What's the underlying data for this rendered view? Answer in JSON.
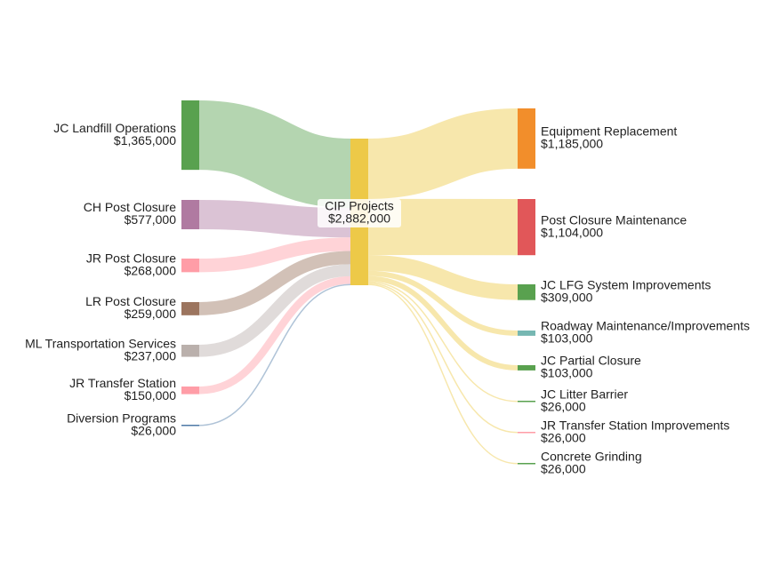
{
  "chart_data": {
    "type": "sankey",
    "center": {
      "name": "CIP Projects",
      "value": 2882000,
      "value_label": "$2,882,000",
      "color": "#edc948"
    },
    "inputs": [
      {
        "name": "JC Landfill Operations",
        "value": 1365000,
        "value_label": "$1,365,000",
        "color": "#59a14f"
      },
      {
        "name": "CH Post Closure",
        "value": 577000,
        "value_label": "$577,000",
        "color": "#b07aa1"
      },
      {
        "name": "JR Post Closure",
        "value": 268000,
        "value_label": "$268,000",
        "color": "#ff9da7"
      },
      {
        "name": "LR Post Closure",
        "value": 259000,
        "value_label": "$259,000",
        "color": "#9c755f"
      },
      {
        "name": "ML Transportation Services",
        "value": 237000,
        "value_label": "$237,000",
        "color": "#bab0ac"
      },
      {
        "name": "JR Transfer Station",
        "value": 150000,
        "value_label": "$150,000",
        "color": "#ff9da7"
      },
      {
        "name": "Diversion Programs",
        "value": 26000,
        "value_label": "$26,000",
        "color": "#4e79a7"
      }
    ],
    "outputs": [
      {
        "name": "Equipment Replacement",
        "value": 1185000,
        "value_label": "$1,185,000",
        "color": "#f28e2b"
      },
      {
        "name": "Post Closure Maintenance",
        "value": 1104000,
        "value_label": "$1,104,000",
        "color": "#e15759"
      },
      {
        "name": "JC LFG System Improvements",
        "value": 309000,
        "value_label": "$309,000",
        "color": "#59a14f"
      },
      {
        "name": "Roadway Maintenance/Improvements",
        "value": 103000,
        "value_label": "$103,000",
        "color": "#76b7b2"
      },
      {
        "name": "JC Partial Closure",
        "value": 103000,
        "value_label": "$103,000",
        "color": "#59a14f"
      },
      {
        "name": "JC Litter Barrier",
        "value": 26000,
        "value_label": "$26,000",
        "color": "#59a14f"
      },
      {
        "name": "JR Transfer Station Improvements",
        "value": 26000,
        "value_label": "$26,000",
        "color": "#ff9da7"
      },
      {
        "name": "Concrete Grinding",
        "value": 26000,
        "value_label": "$26,000",
        "color": "#59a14f"
      }
    ]
  }
}
